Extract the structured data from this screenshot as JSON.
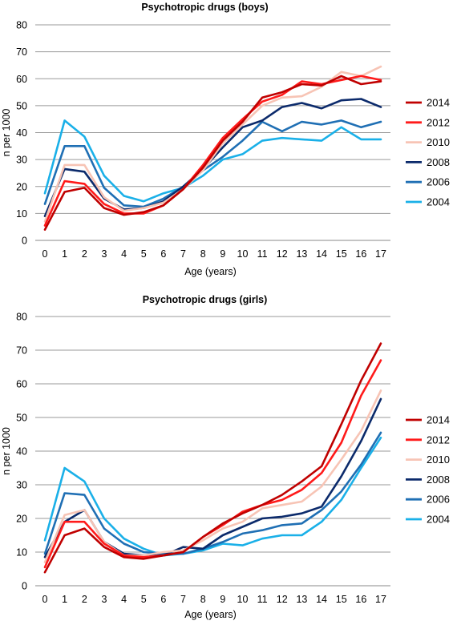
{
  "chart_data": [
    {
      "type": "line",
      "title": "Psychotropic drugs (boys)",
      "xlabel": "Age (years)",
      "ylabel": "n per 1000",
      "x": [
        0,
        1,
        2,
        3,
        4,
        5,
        6,
        7,
        8,
        9,
        10,
        11,
        12,
        13,
        14,
        15,
        16,
        17
      ],
      "ylim": [
        0,
        80
      ],
      "yticks": [
        0,
        10,
        20,
        30,
        40,
        50,
        60,
        70,
        80
      ],
      "grid": "horizontal",
      "legend_position": "right",
      "series": [
        {
          "name": "2014",
          "color": "#c00000",
          "values": [
            4,
            18,
            19.5,
            12,
            9.5,
            10.5,
            13,
            19,
            27,
            37,
            44,
            53,
            55,
            58,
            57.5,
            61,
            58,
            59
          ]
        },
        {
          "name": "2012",
          "color": "#ff1a1a",
          "values": [
            5.5,
            22,
            21,
            13.5,
            10,
            10,
            13,
            19,
            28,
            38,
            45,
            51.5,
            54,
            59,
            58,
            59.5,
            61,
            59.5
          ]
        },
        {
          "name": "2010",
          "color": "#f7c4b5",
          "values": [
            7,
            28,
            28,
            16,
            11,
            12,
            14,
            19,
            26,
            36,
            43,
            50,
            53,
            53.5,
            57,
            62.5,
            61,
            64.5
          ]
        },
        {
          "name": "2008",
          "color": "#0b2a6b",
          "values": [
            9,
            26.5,
            25.5,
            15.5,
            11.5,
            12,
            14.5,
            20,
            26.5,
            34.5,
            42,
            44.5,
            49.5,
            51,
            49,
            52,
            52.5,
            49.5
          ]
        },
        {
          "name": "2006",
          "color": "#1f6fb4",
          "values": [
            13.5,
            35,
            35,
            19.5,
            13,
            12.5,
            15.5,
            20,
            26,
            31,
            37,
            44,
            40.5,
            44,
            43,
            44.5,
            42,
            44
          ]
        },
        {
          "name": "2004",
          "color": "#1ab0e8",
          "values": [
            17.5,
            44.5,
            38.5,
            24,
            16.5,
            14.5,
            17.5,
            19.5,
            24,
            30,
            32,
            37,
            38,
            37.5,
            37,
            42,
            37.5,
            37.5
          ]
        }
      ]
    },
    {
      "type": "line",
      "title": "Psychotropic drugs (girls)",
      "xlabel": "Age (years)",
      "ylabel": "n per 1000",
      "x": [
        0,
        1,
        2,
        3,
        4,
        5,
        6,
        7,
        8,
        9,
        10,
        11,
        12,
        13,
        14,
        15,
        16,
        17
      ],
      "ylim": [
        0,
        80
      ],
      "yticks": [
        0,
        10,
        20,
        30,
        40,
        50,
        60,
        70,
        80
      ],
      "grid": "horizontal",
      "legend_position": "right",
      "series": [
        {
          "name": "2014",
          "color": "#c00000",
          "values": [
            4,
            15,
            17,
            11.5,
            8.5,
            8,
            9,
            10,
            14.5,
            18.5,
            21.5,
            24,
            27,
            31,
            35.5,
            48,
            61,
            72
          ]
        },
        {
          "name": "2012",
          "color": "#ff1a1a",
          "values": [
            5.5,
            19,
            19,
            12.5,
            9,
            8.5,
            9,
            10,
            14.5,
            18,
            22,
            24,
            25.5,
            28.5,
            33.5,
            42.5,
            56.5,
            67
          ]
        },
        {
          "name": "2010",
          "color": "#f7c4b5",
          "values": [
            7,
            21,
            22.5,
            13,
            9,
            9,
            10,
            10.5,
            13.5,
            17,
            19,
            23,
            24,
            25,
            29.5,
            37.5,
            46,
            58
          ]
        },
        {
          "name": "2008",
          "color": "#0b2a6b",
          "values": [
            8.5,
            19,
            22.5,
            13,
            9.5,
            9,
            9,
            11.5,
            11,
            15,
            17.5,
            20,
            20.5,
            21.5,
            23.5,
            32.5,
            43,
            55.5
          ]
        },
        {
          "name": "2006",
          "color": "#1f6fb4",
          "values": [
            9.5,
            27.5,
            27,
            17,
            12.5,
            10,
            9.5,
            9.5,
            11,
            13,
            15.5,
            16.5,
            18,
            18.5,
            22.5,
            28,
            36,
            45.5
          ]
        },
        {
          "name": "2004",
          "color": "#1ab0e8",
          "values": [
            13.5,
            35,
            31,
            20,
            14,
            11,
            9,
            9.5,
            10.5,
            12.5,
            12,
            14,
            15,
            15,
            19,
            25.5,
            35,
            44
          ]
        }
      ]
    }
  ]
}
